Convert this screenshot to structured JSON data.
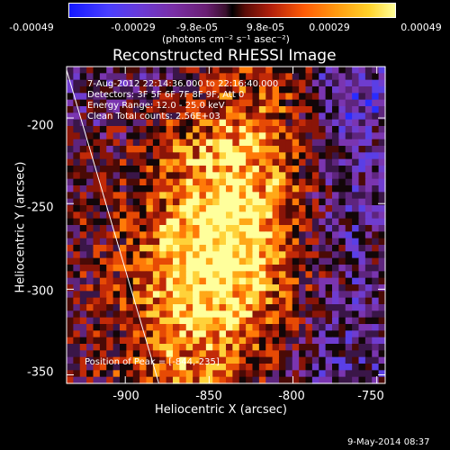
{
  "colorbar": {
    "ticks": [
      "-0.00049",
      "-0.00029",
      "-9.8e-05",
      "9.8e-05",
      "0.00029",
      "0.00049"
    ],
    "units": "(photons cm⁻² s⁻¹ asec⁻²)"
  },
  "chart_data": {
    "type": "heatmap",
    "title": "Reconstructed RHESSI Image",
    "xlabel": "Heliocentric X (arcsec)",
    "ylabel": "Heliocentric Y (arcsec)",
    "xlim": [
      -935,
      -745
    ],
    "ylim": [
      -355,
      -170
    ],
    "xticks": [
      "-900",
      "-850",
      "-800",
      "-750"
    ],
    "yticks": [
      "-200",
      "-250",
      "-300",
      "-350"
    ],
    "value_range": [
      -0.00049,
      0.00049
    ],
    "peak": [
      -844,
      -235
    ],
    "colors": {
      "negative_low": "#1418ff",
      "negative_mid": "#6a3ad6",
      "zero": "#000000",
      "positive_mid": "#ff5b06",
      "positive_high": "#ffff9a",
      "limb_line": "#ffffff"
    }
  },
  "annotations": {
    "time": "7-Aug-2012 22:14:36.000 to 22:16:40.000",
    "detectors": "Detectors: 3F 5F 6F 7F 8F 9F, Att 0",
    "energy": "Energy Range: 12.0 - 25.0 keV",
    "clean": "Clean    Total counts: 2.56E+03",
    "peak": "Position of Peak = [-844,-235]"
  },
  "footer": "9-May-2014 08:37"
}
